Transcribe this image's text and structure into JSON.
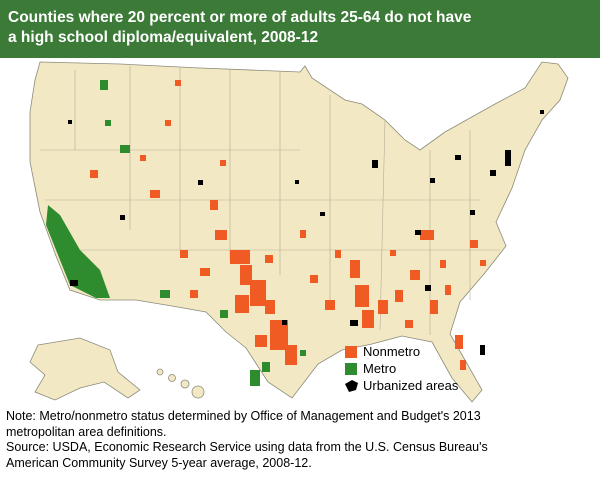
{
  "title": {
    "lines": [
      "Counties where 20 percent or more of adults 25-64 do not have",
      "a high school diploma/equivalent, 2008-12"
    ]
  },
  "legend": {
    "items": [
      {
        "label": "Nonmetro",
        "color": "#f05a23"
      },
      {
        "label": "Metro",
        "color": "#2e8b2e"
      },
      {
        "label": "Urbanized areas",
        "color": "#000000"
      }
    ]
  },
  "notes": [
    "Note: Metro/nonmetro status determined by Office of Management and Budget's 2013",
    "metropolitan area definitions.",
    "Source: USDA, Economic Research Service using data from the U.S. Census Bureau's",
    "American Community Survey 5-year average, 2008-12."
  ]
}
